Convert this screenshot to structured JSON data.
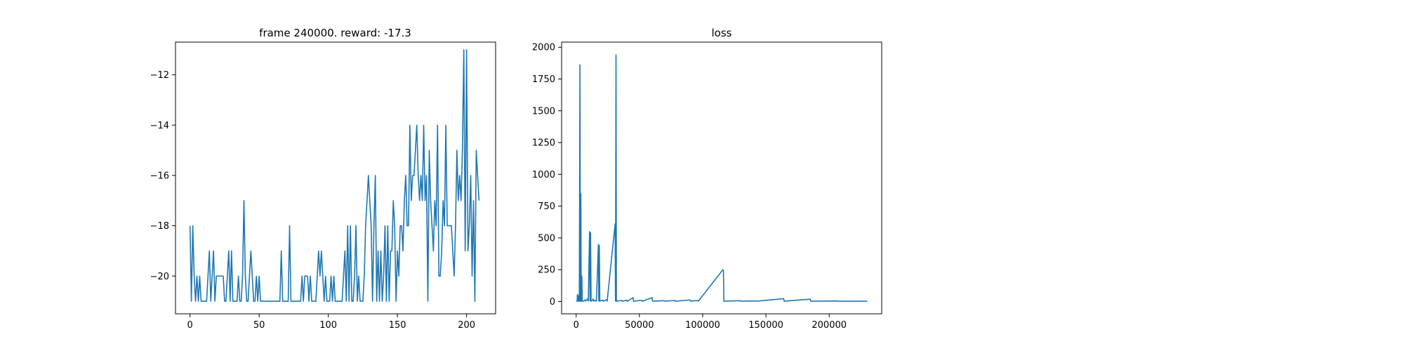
{
  "chart_data": [
    {
      "type": "line",
      "title": "frame 240000. reward: -17.3",
      "xlabel": "",
      "ylabel": "",
      "xlim": [
        -10.5,
        221
      ],
      "ylim": [
        -21.5,
        -10.7
      ],
      "xticks": [
        0,
        50,
        100,
        150,
        200
      ],
      "yticks": [
        -20,
        -18,
        -16,
        -14,
        -12
      ],
      "xtick_labels": [
        "0",
        "50",
        "100",
        "150",
        "200"
      ],
      "ytick_labels": [
        "−20",
        "−18",
        "−16",
        "−14",
        "−12"
      ],
      "grid": false,
      "color": "#1f77b4",
      "series": [
        {
          "x_start": 0,
          "x_step": 1,
          "values": [
            -18,
            -21,
            -18,
            -20,
            -21,
            -20,
            -21,
            -20,
            -21,
            -21,
            -21,
            -21,
            -21,
            -20,
            -19,
            -21,
            -20,
            -19,
            -21,
            -20,
            -20,
            -20,
            -20,
            -20,
            -20,
            -21,
            -21,
            -20,
            -19,
            -21,
            -19,
            -21,
            -21,
            -21,
            -21,
            -20,
            -21,
            -21,
            -20,
            -17,
            -20,
            -21,
            -21,
            -20,
            -19,
            -20,
            -21,
            -21,
            -20,
            -21,
            -20,
            -21,
            -21,
            -21,
            -21,
            -21,
            -21,
            -21,
            -21,
            -21,
            -21,
            -21,
            -21,
            -21,
            -21,
            -21,
            -19,
            -21,
            -21,
            -21,
            -21,
            -21,
            -18,
            -21,
            -21,
            -21,
            -21,
            -21,
            -21,
            -21,
            -21,
            -20,
            -21,
            -20,
            -20,
            -20,
            -21,
            -20,
            -21,
            -21,
            -21,
            -21,
            -20,
            -19,
            -20,
            -19,
            -20,
            -21,
            -20,
            -21,
            -21,
            -21,
            -20,
            -21,
            -20,
            -21,
            -21,
            -21,
            -21,
            -21,
            -21,
            -20,
            -19,
            -21,
            -18,
            -21,
            -18,
            -21,
            -21,
            -20,
            -18,
            -21,
            -20,
            -21,
            -21,
            -21,
            -20,
            -18,
            -17,
            -16,
            -17,
            -18,
            -21,
            -18,
            -16,
            -21,
            -19,
            -21,
            -19,
            -21,
            -20,
            -18,
            -21,
            -18,
            -21,
            -19,
            -19,
            -17,
            -18,
            -21,
            -19,
            -20,
            -18,
            -18,
            -19,
            -17,
            -16,
            -18,
            -18,
            -14,
            -17,
            -16,
            -16,
            -15,
            -14,
            -16,
            -17,
            -16,
            -17,
            -14,
            -17,
            -16,
            -21,
            -15,
            -17,
            -18,
            -19,
            -17,
            -18,
            -14,
            -20,
            -20,
            -19,
            -17,
            -18,
            -14,
            -18,
            -18,
            -18,
            -18,
            -19,
            -20,
            -18,
            -15,
            -17,
            -16,
            -17,
            -15,
            -11,
            -19,
            -11,
            -19,
            -18,
            -16,
            -20,
            -17,
            -21,
            -15,
            -16,
            -17
          ]
        }
      ]
    },
    {
      "type": "line",
      "title": "loss",
      "xlabel": "",
      "ylabel": "",
      "xlim": [
        -11500,
        241500
      ],
      "ylim": [
        -97,
        2040
      ],
      "xticks": [
        0,
        50000,
        100000,
        150000,
        200000
      ],
      "yticks": [
        0,
        250,
        500,
        750,
        1000,
        1250,
        1500,
        1750,
        2000
      ],
      "xtick_labels": [
        "0",
        "50000",
        "100000",
        "150000",
        "200000"
      ],
      "ytick_labels": [
        "0",
        "250",
        "500",
        "750",
        "1000",
        "1250",
        "1500",
        "1750",
        "2000"
      ],
      "grid": false,
      "color": "#1f77b4",
      "series": [
        {
          "points": [
            [
              0,
              2
            ],
            [
              800,
              3
            ],
            [
              1000,
              55
            ],
            [
              1300,
              2
            ],
            [
              1700,
              45
            ],
            [
              2000,
              3
            ],
            [
              2500,
              2
            ],
            [
              3000,
              1860
            ],
            [
              3300,
              2
            ],
            [
              3700,
              850
            ],
            [
              4000,
              2
            ],
            [
              4500,
              200
            ],
            [
              4800,
              2
            ],
            [
              6000,
              4
            ],
            [
              7000,
              12
            ],
            [
              7500,
              3
            ],
            [
              9000,
              20
            ],
            [
              9600,
              3
            ],
            [
              10600,
              550
            ],
            [
              11000,
              5
            ],
            [
              11400,
              540
            ],
            [
              11800,
              3
            ],
            [
              13000,
              8
            ],
            [
              13500,
              20
            ],
            [
              14000,
              3
            ],
            [
              15500,
              10
            ],
            [
              16000,
              2
            ],
            [
              17600,
              450
            ],
            [
              17900,
              4
            ],
            [
              18300,
              440
            ],
            [
              18700,
              3
            ],
            [
              21000,
              10
            ],
            [
              21500,
              2
            ],
            [
              24000,
              14
            ],
            [
              24500,
              2
            ],
            [
              30800,
              610
            ],
            [
              31100,
              3
            ],
            [
              31500,
              1940
            ],
            [
              31800,
              2
            ],
            [
              36000,
              8
            ],
            [
              36500,
              2
            ],
            [
              40000,
              10
            ],
            [
              40500,
              2
            ],
            [
              45000,
              30
            ],
            [
              45400,
              2
            ],
            [
              52000,
              10
            ],
            [
              52500,
              2
            ],
            [
              60000,
              30
            ],
            [
              60400,
              2
            ],
            [
              70000,
              6
            ],
            [
              70500,
              2
            ],
            [
              78000,
              8
            ],
            [
              78500,
              2
            ],
            [
              90000,
              12
            ],
            [
              90500,
              2
            ],
            [
              96000,
              8
            ],
            [
              96500,
              2
            ],
            [
              116000,
              250
            ],
            [
              116400,
              240
            ],
            [
              116800,
              2
            ],
            [
              130000,
              6
            ],
            [
              130500,
              2
            ],
            [
              142000,
              5
            ],
            [
              142500,
              2
            ],
            [
              164000,
              22
            ],
            [
              164400,
              2
            ],
            [
              185000,
              18
            ],
            [
              185400,
              2
            ],
            [
              206000,
              4
            ],
            [
              206500,
              2
            ],
            [
              230000,
              2
            ]
          ]
        }
      ]
    }
  ]
}
